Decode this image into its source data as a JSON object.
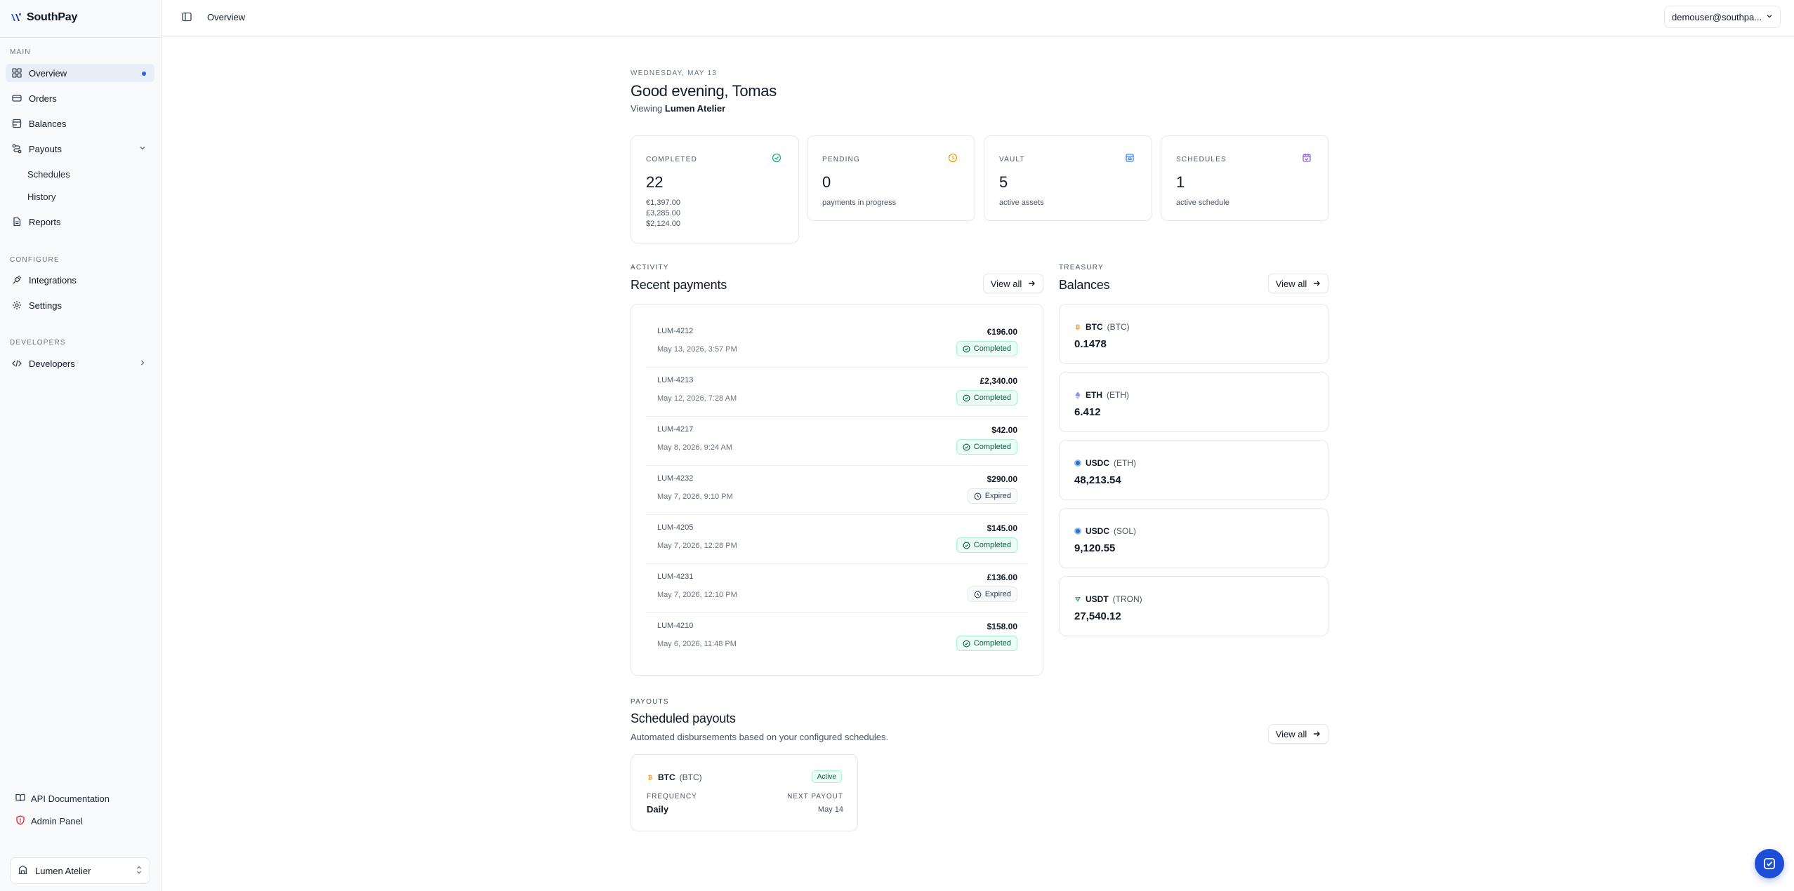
{
  "brand": {
    "name": "SouthPay"
  },
  "sidebar": {
    "sections": {
      "main": "MAIN",
      "configure": "CONFIGURE",
      "developers": "DEVELOPERS"
    },
    "items": {
      "overview": "Overview",
      "orders": "Orders",
      "balances": "Balances",
      "payouts": "Payouts",
      "schedules": "Schedules",
      "history": "History",
      "reports": "Reports",
      "integrations": "Integrations",
      "settings": "Settings",
      "developers": "Developers"
    },
    "footer": {
      "api_docs": "API Documentation",
      "admin_panel": "Admin Panel"
    },
    "org": "Lumen Atelier"
  },
  "topbar": {
    "breadcrumb": "Overview",
    "user": "demouser@southpa..."
  },
  "header": {
    "date": "WEDNESDAY, MAY 13",
    "greeting": "Good evening, Tomas",
    "viewing_prefix": "Viewing",
    "viewing_org": "Lumen Atelier"
  },
  "stats": {
    "completed": {
      "label": "COMPLETED",
      "value": "22",
      "lines": [
        "€1,397.00",
        "£3,285.00",
        "$2,124.00"
      ]
    },
    "pending": {
      "label": "PENDING",
      "value": "0",
      "sub": "payments in progress"
    },
    "vault": {
      "label": "VAULT",
      "value": "5",
      "sub": "active assets"
    },
    "schedules": {
      "label": "SCHEDULES",
      "value": "1",
      "sub": "active schedule"
    }
  },
  "activity": {
    "eyebrow": "ACTIVITY",
    "title": "Recent payments",
    "view_all": "View all",
    "payments": [
      {
        "id": "LUM-4212",
        "date": "May 13, 2026, 3:57 PM",
        "amount": "€196.00",
        "status": "Completed"
      },
      {
        "id": "LUM-4213",
        "date": "May 12, 2026, 7:28 AM",
        "amount": "£2,340.00",
        "status": "Completed"
      },
      {
        "id": "LUM-4217",
        "date": "May 8, 2026, 9:24 AM",
        "amount": "$42.00",
        "status": "Completed"
      },
      {
        "id": "LUM-4232",
        "date": "May 7, 2026, 9:10 PM",
        "amount": "$290.00",
        "status": "Expired"
      },
      {
        "id": "LUM-4205",
        "date": "May 7, 2026, 12:28 PM",
        "amount": "$145.00",
        "status": "Completed"
      },
      {
        "id": "LUM-4231",
        "date": "May 7, 2026, 12:10 PM",
        "amount": "£136.00",
        "status": "Expired"
      },
      {
        "id": "LUM-4210",
        "date": "May 6, 2026, 11:48 PM",
        "amount": "$158.00",
        "status": "Completed"
      }
    ]
  },
  "treasury": {
    "eyebrow": "TREASURY",
    "title": "Balances",
    "view_all": "View all",
    "balances": [
      {
        "asset": "BTC",
        "network": "(BTC)",
        "amount": "0.1478",
        "icon": "btc-icon",
        "color": "#f7931a"
      },
      {
        "asset": "ETH",
        "network": "(ETH)",
        "amount": "6.412",
        "icon": "eth-icon",
        "color": "#8b93e8"
      },
      {
        "asset": "USDC",
        "network": "(ETH)",
        "amount": "48,213.54",
        "icon": "usdc-icon",
        "color": "#2775ca"
      },
      {
        "asset": "USDC",
        "network": "(SOL)",
        "amount": "9,120.55",
        "icon": "usdc-icon",
        "color": "#2775ca"
      },
      {
        "asset": "USDT",
        "network": "(TRON)",
        "amount": "27,540.12",
        "icon": "usdt-icon",
        "color": "#26a17b"
      }
    ]
  },
  "payouts": {
    "eyebrow": "PAYOUTS",
    "title": "Scheduled payouts",
    "description": "Automated disbursements based on your configured schedules.",
    "view_all": "View all",
    "schedule": {
      "asset": "BTC",
      "network": "(BTC)",
      "status": "Active",
      "frequency_label": "FREQUENCY",
      "frequency": "Daily",
      "next_label": "NEXT PAYOUT",
      "next": "May 14"
    }
  },
  "colors": {
    "accent": "#2563eb",
    "success_bg": "#ecfdf5",
    "success_text": "#065f46",
    "btc": "#f7931a",
    "pending": "#f59e0b",
    "vault": "#3b82f6",
    "schedules": "#8b5cf6"
  }
}
